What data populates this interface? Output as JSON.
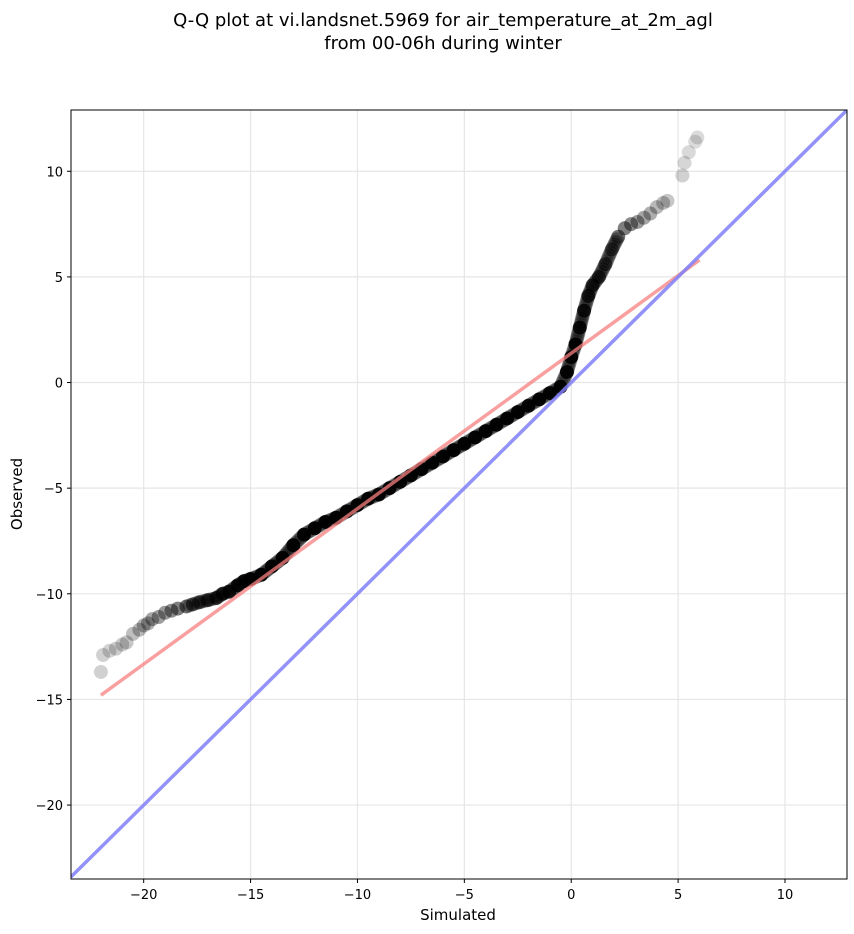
{
  "chart_data": {
    "type": "scatter",
    "title_line1": "Q-Q plot at vi.landsnet.5969 for air_temperature_at_2m_agl",
    "title_line2": "from 00-06h during winter",
    "xlabel": "Simulated",
    "ylabel": "Observed",
    "xlim": [
      -23.4,
      12.9
    ],
    "ylim": [
      -23.5,
      12.9
    ],
    "xticks": [
      -20,
      -15,
      -10,
      -5,
      0,
      5,
      10
    ],
    "yticks": [
      -20,
      -15,
      -10,
      -5,
      0,
      5,
      10
    ],
    "xtick_labels": [
      "−20",
      "−15",
      "−10",
      "−5",
      "0",
      "5",
      "10"
    ],
    "ytick_labels": [
      "−20",
      "−15",
      "−10",
      "−5",
      "0",
      "5",
      "10"
    ],
    "grid": true,
    "legend": "none",
    "colors": {
      "points": "#000000",
      "fit_line": "#f77f7f",
      "identity_line": "#7f7ff7",
      "grid": "#e6e6e6"
    },
    "fit_line": {
      "x": [
        -22.0,
        6.0
      ],
      "y": [
        -14.8,
        5.8
      ]
    },
    "identity_line": {
      "x": [
        -23.4,
        12.9
      ],
      "y": [
        -23.4,
        12.9
      ]
    },
    "points": {
      "x": [
        -22.0,
        -21.9,
        -21.6,
        -21.3,
        -21.0,
        -20.8,
        -20.5,
        -20.2,
        -20.0,
        -19.8,
        -19.6,
        -19.3,
        -19.0,
        -18.7,
        -18.4,
        -18.0,
        -17.7,
        -17.4,
        -17.0,
        -16.6,
        -16.3,
        -16.0,
        -15.6,
        -15.3,
        -15.0,
        -14.5,
        -14.0,
        -13.5,
        -13.0,
        -12.5,
        -12.0,
        -11.5,
        -11.0,
        -10.5,
        -10.0,
        -9.5,
        -9.0,
        -8.5,
        -8.0,
        -7.5,
        -7.0,
        -6.5,
        -6.0,
        -5.5,
        -5.0,
        -4.5,
        -4.0,
        -3.5,
        -3.0,
        -2.5,
        -2.0,
        -1.5,
        -1.0,
        -0.5,
        -0.2,
        0.0,
        0.2,
        0.4,
        0.6,
        0.8,
        1.0,
        1.3,
        1.6,
        1.9,
        2.2,
        2.5,
        2.8,
        3.1,
        3.4,
        3.7,
        4.0,
        4.3,
        4.5,
        5.2,
        5.3,
        5.5,
        5.8,
        5.9
      ],
      "y": [
        -13.7,
        -12.9,
        -12.7,
        -12.6,
        -12.4,
        -12.3,
        -11.9,
        -11.7,
        -11.5,
        -11.4,
        -11.2,
        -11.1,
        -10.9,
        -10.8,
        -10.7,
        -10.6,
        -10.5,
        -10.4,
        -10.3,
        -10.2,
        -10.0,
        -9.9,
        -9.6,
        -9.4,
        -9.3,
        -9.1,
        -8.7,
        -8.3,
        -7.7,
        -7.2,
        -6.9,
        -6.6,
        -6.4,
        -6.1,
        -5.8,
        -5.5,
        -5.3,
        -5.0,
        -4.7,
        -4.4,
        -4.1,
        -3.8,
        -3.5,
        -3.2,
        -2.9,
        -2.6,
        -2.3,
        -2.0,
        -1.7,
        -1.4,
        -1.1,
        -0.8,
        -0.5,
        -0.2,
        0.5,
        1.2,
        1.8,
        2.6,
        3.4,
        4.1,
        4.6,
        5.0,
        5.6,
        6.3,
        6.9,
        7.3,
        7.5,
        7.6,
        7.8,
        8.0,
        8.3,
        8.5,
        8.6,
        9.8,
        10.4,
        10.9,
        11.4,
        11.6
      ],
      "alpha": [
        0.18,
        0.18,
        0.18,
        0.2,
        0.2,
        0.22,
        0.25,
        0.28,
        0.3,
        0.32,
        0.35,
        0.38,
        0.4,
        0.45,
        0.5,
        0.55,
        0.6,
        0.65,
        0.7,
        0.75,
        0.8,
        0.85,
        0.9,
        0.92,
        0.95,
        0.95,
        0.95,
        0.95,
        0.95,
        0.95,
        0.95,
        0.95,
        0.95,
        0.95,
        0.95,
        0.95,
        0.95,
        0.95,
        0.95,
        0.95,
        0.95,
        0.95,
        0.95,
        0.95,
        0.95,
        0.95,
        0.95,
        0.95,
        0.95,
        0.95,
        0.95,
        0.95,
        0.95,
        0.95,
        0.95,
        0.95,
        0.95,
        0.9,
        0.85,
        0.8,
        0.75,
        0.7,
        0.65,
        0.6,
        0.55,
        0.5,
        0.45,
        0.4,
        0.35,
        0.32,
        0.28,
        0.25,
        0.22,
        0.18,
        0.16,
        0.15,
        0.14,
        0.14
      ]
    }
  }
}
